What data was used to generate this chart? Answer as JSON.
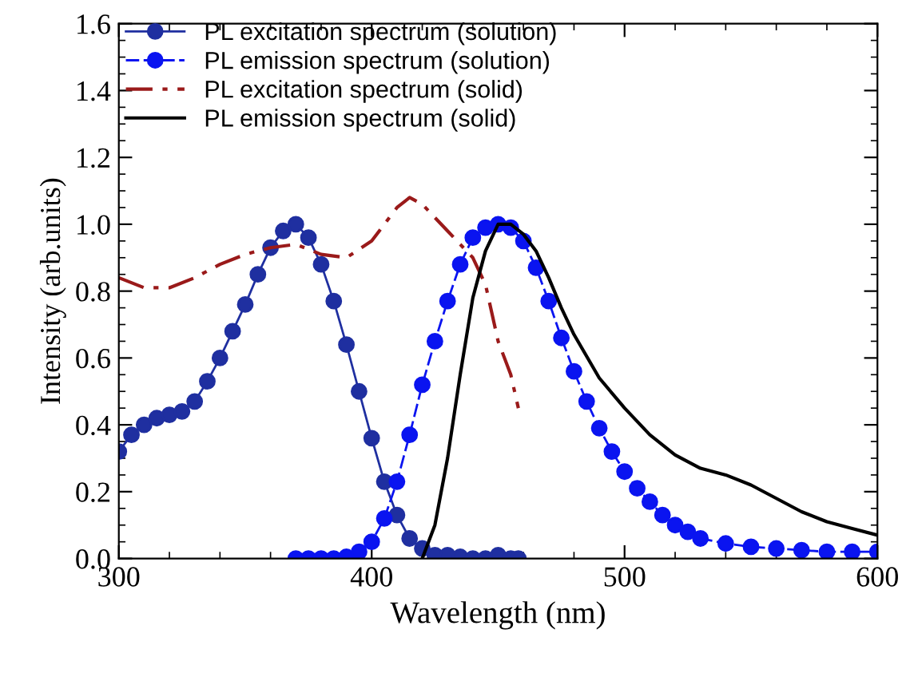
{
  "chart_data": {
    "type": "line",
    "xlabel": "Wavelength (nm)",
    "ylabel": "Intensity (arb.units)",
    "xlim": [
      300,
      600
    ],
    "ylim": [
      0,
      1.6
    ],
    "xticks": [
      300,
      400,
      500,
      600
    ],
    "yticks": [
      {
        "value": 0,
        "label": "0.0"
      },
      {
        "value": 0.2,
        "label": "0.2"
      },
      {
        "value": 0.4,
        "label": "0.4"
      },
      {
        "value": 0.6,
        "label": "0.6"
      },
      {
        "value": 0.8,
        "label": "0.8"
      },
      {
        "value": 1,
        "label": "1.0"
      },
      {
        "value": 1.2,
        "label": "1.2"
      },
      {
        "value": 1.4,
        "label": "1.4"
      },
      {
        "value": 1.6,
        "label": "1.6"
      }
    ],
    "legend": "top left",
    "grid": false,
    "series": [
      {
        "name": "PL excitation spectrum (solution)",
        "color": "#1f2fa0",
        "marker": "circle",
        "line_style": "solid",
        "x": [
          300,
          305,
          310,
          315,
          320,
          325,
          330,
          335,
          340,
          345,
          350,
          355,
          360,
          365,
          370,
          375,
          380,
          385,
          390,
          395,
          400,
          405,
          410,
          415,
          420,
          425,
          430,
          435,
          440,
          445,
          450,
          455,
          458
        ],
        "values": [
          0.32,
          0.37,
          0.4,
          0.42,
          0.43,
          0.44,
          0.47,
          0.53,
          0.6,
          0.68,
          0.76,
          0.85,
          0.93,
          0.98,
          1.0,
          0.96,
          0.88,
          0.77,
          0.64,
          0.5,
          0.36,
          0.23,
          0.13,
          0.06,
          0.03,
          0.01,
          0.01,
          0.005,
          0.0,
          0.0,
          0.01,
          0.0,
          0.0
        ]
      },
      {
        "name": "PL emission spectrum (solution)",
        "color": "#0a14f0",
        "marker": "circle",
        "line_style": "dashed",
        "x": [
          370,
          375,
          380,
          385,
          390,
          395,
          400,
          405,
          410,
          415,
          420,
          425,
          430,
          435,
          440,
          445,
          450,
          455,
          460,
          465,
          470,
          475,
          480,
          485,
          490,
          495,
          500,
          505,
          510,
          515,
          520,
          525,
          530,
          540,
          550,
          560,
          570,
          580,
          590,
          600
        ],
        "values": [
          0,
          0,
          0,
          0,
          0.005,
          0.02,
          0.05,
          0.12,
          0.23,
          0.37,
          0.52,
          0.65,
          0.77,
          0.88,
          0.96,
          0.99,
          1.0,
          0.99,
          0.95,
          0.87,
          0.77,
          0.66,
          0.56,
          0.47,
          0.39,
          0.32,
          0.26,
          0.21,
          0.17,
          0.13,
          0.1,
          0.08,
          0.06,
          0.045,
          0.035,
          0.03,
          0.025,
          0.02,
          0.02,
          0.02
        ]
      },
      {
        "name": "PL excitation spectrum (solid)",
        "color": "#9a1a1a",
        "marker": "none",
        "line_style": "dashdot",
        "x": [
          300,
          310,
          320,
          330,
          340,
          350,
          360,
          370,
          380,
          390,
          400,
          410,
          415,
          420,
          430,
          440,
          445,
          450,
          455,
          458
        ],
        "values": [
          0.84,
          0.81,
          0.81,
          0.84,
          0.88,
          0.91,
          0.93,
          0.94,
          0.91,
          0.9,
          0.95,
          1.05,
          1.08,
          1.06,
          0.98,
          0.9,
          0.82,
          0.65,
          0.55,
          0.45
        ]
      },
      {
        "name": "PL emission spectrum (solid)",
        "color": "#000000",
        "marker": "none",
        "line_style": "solid",
        "x": [
          420,
          425,
          430,
          435,
          440,
          445,
          450,
          455,
          460,
          465,
          470,
          475,
          480,
          490,
          500,
          510,
          520,
          530,
          540,
          550,
          560,
          570,
          580,
          590,
          600
        ],
        "values": [
          0.0,
          0.1,
          0.3,
          0.55,
          0.78,
          0.92,
          1.0,
          1.0,
          0.97,
          0.92,
          0.84,
          0.75,
          0.67,
          0.54,
          0.45,
          0.37,
          0.31,
          0.27,
          0.25,
          0.22,
          0.18,
          0.14,
          0.11,
          0.09,
          0.07
        ]
      }
    ]
  }
}
